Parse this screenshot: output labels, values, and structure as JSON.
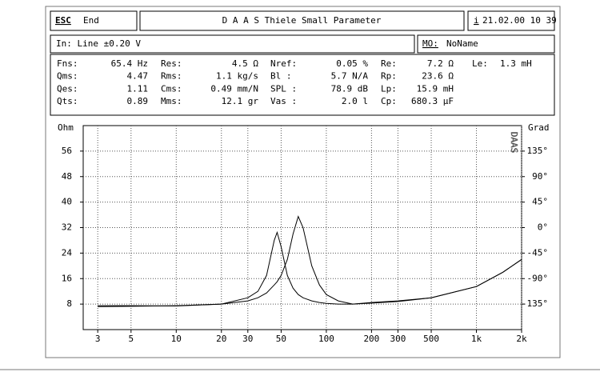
{
  "header": {
    "esc": "ESC",
    "end": "End",
    "title": "D A A S  Thiele Small Parameter",
    "info_icon": "i",
    "datetime": "21.02.00 10 39"
  },
  "input": {
    "source": "In: Line  ±0.20 V",
    "mo_label": "MO:",
    "mo_value": "NoName"
  },
  "params": {
    "rows": [
      [
        [
          "Fns:",
          "65.4 Hz"
        ],
        [
          "Res:",
          "4.5 Ω"
        ],
        [
          "Nref:",
          "0.05 %"
        ],
        [
          "Re:",
          "7.2 Ω"
        ],
        [
          "Le:",
          "1.3 mH"
        ]
      ],
      [
        [
          "Qms:",
          "4.47"
        ],
        [
          "Rms:",
          "1.1 kg/s"
        ],
        [
          "Bl  :",
          "5.7 N/A"
        ],
        [
          "Rp:",
          "23.6 Ω"
        ]
      ],
      [
        [
          "Qes:",
          "1.11"
        ],
        [
          "Cms:",
          "0.49 mm/N"
        ],
        [
          "SPL :",
          "78.9 dB"
        ],
        [
          "Lp:",
          "15.9 mH"
        ]
      ],
      [
        [
          "Qts:",
          "0.89"
        ],
        [
          "Mms:",
          "12.1 gr"
        ],
        [
          "Vas :",
          "2.0 l"
        ],
        [
          "Cp:",
          "680.3 µF"
        ]
      ]
    ]
  },
  "chart_data": {
    "type": "line",
    "y_label": "Ohm",
    "y2_label": "Grad",
    "watermark": "DAAS",
    "log_x": true,
    "grid": true,
    "x": [
      3,
      5,
      10,
      20,
      30,
      35,
      40,
      45,
      47,
      50,
      55,
      60,
      65,
      70,
      80,
      90,
      100,
      120,
      150,
      200,
      300,
      500,
      1000,
      1500,
      2000
    ],
    "series": [
      {
        "color": "#000000",
        "values": [
          7.2,
          7.3,
          7.5,
          8,
          9,
          10,
          11.5,
          14,
          15,
          17,
          22,
          30,
          35.5,
          32,
          20,
          14,
          11,
          9,
          8,
          8.3,
          8.8,
          10,
          13.5,
          18,
          22
        ]
      },
      {
        "color": "#000000",
        "values": [
          7.5,
          7.5,
          7.4,
          8,
          10,
          12,
          17,
          28,
          30.5,
          26,
          17,
          13,
          11,
          10,
          9,
          8.5,
          8.2,
          8,
          8,
          8.5,
          9,
          10,
          13.5,
          18,
          22
        ]
      }
    ],
    "xlim": [
      2.4,
      2000
    ],
    "ylim": [
      0,
      64
    ],
    "y2lim": [
      -180,
      180
    ],
    "xticks": [
      3,
      5,
      10,
      20,
      30,
      50,
      100,
      200,
      300,
      500,
      {
        "value": 1000,
        "label": "1k"
      },
      {
        "value": 2000,
        "label": "2k"
      }
    ],
    "yticks": [
      8,
      16,
      24,
      32,
      40,
      48,
      56
    ],
    "y2ticks": [
      {
        "value": -135,
        "label": "-135°"
      },
      {
        "value": -90,
        "label": "-90°"
      },
      {
        "value": -45,
        "label": "-45°"
      },
      {
        "value": 0,
        "label": "0°"
      },
      {
        "value": 45,
        "label": "45°"
      },
      {
        "value": 90,
        "label": "90°"
      },
      {
        "value": 135,
        "label": "135°"
      }
    ]
  }
}
